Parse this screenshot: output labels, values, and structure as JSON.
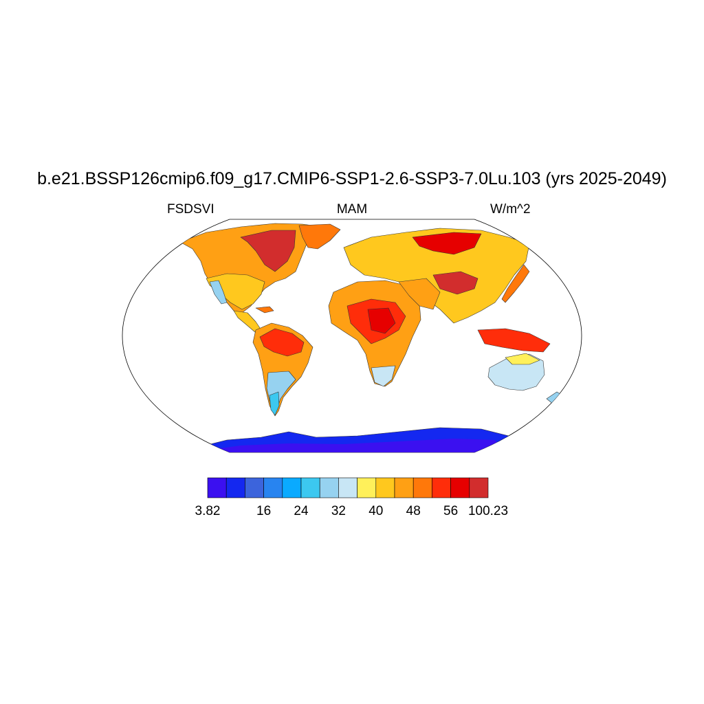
{
  "title": "b.e21.BSSP126cmip6.f09_g17.CMIP6-SSP1-2.6-SSP3-7.0Lu.103 (yrs 2025-2049)",
  "variable": "FSDSVI",
  "season": "MAM",
  "units": "W/m^2",
  "colorbar": {
    "colors": [
      "#3b10f0",
      "#1428f0",
      "#3c64dc",
      "#2884f0",
      "#0aaaff",
      "#3cc8f0",
      "#96d2f0",
      "#c8e6f5",
      "#fff05a",
      "#ffc81e",
      "#ffa014",
      "#ff780a",
      "#ff2d0a",
      "#e60000",
      "#d22d2d"
    ],
    "tick_labels": [
      {
        "label": "3.82",
        "index": 0
      },
      {
        "label": "16",
        "index": 3
      },
      {
        "label": "24",
        "index": 5
      },
      {
        "label": "32",
        "index": 7
      },
      {
        "label": "40",
        "index": 9
      },
      {
        "label": "48",
        "index": 11
      },
      {
        "label": "56",
        "index": 13
      },
      {
        "label": "100.23",
        "index": 15
      }
    ]
  }
}
